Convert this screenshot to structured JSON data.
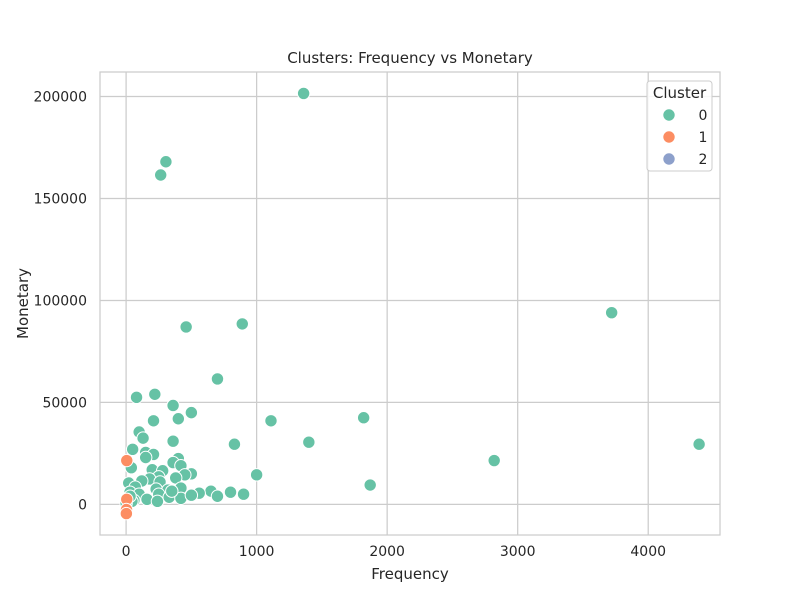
{
  "chart_data": {
    "type": "scatter",
    "title": "Clusters: Frequency vs Monetary",
    "xlabel": "Frequency",
    "ylabel": "Monetary",
    "xlim": [
      -200,
      4550
    ],
    "ylim": [
      -15000,
      212000
    ],
    "xticks": [
      0,
      1000,
      2000,
      3000,
      4000
    ],
    "yticks": [
      0,
      50000,
      100000,
      150000,
      200000
    ],
    "xtick_labels": [
      "0",
      "1000",
      "2000",
      "3000",
      "4000"
    ],
    "ytick_labels": [
      "0",
      "50000",
      "100000",
      "150000",
      "200000"
    ],
    "grid": true,
    "legend": {
      "title": "Cluster",
      "placement": "top-right",
      "entries": [
        {
          "label": "0",
          "color": "#66c2a5"
        },
        {
          "label": "1",
          "color": "#fc8d62"
        },
        {
          "label": "2",
          "color": "#8da0cb"
        }
      ]
    },
    "series": [
      {
        "name": "0",
        "color": "#66c2a5",
        "points": [
          [
            1360,
            201500
          ],
          [
            305,
            168000
          ],
          [
            265,
            161500
          ],
          [
            3720,
            94000
          ],
          [
            890,
            88500
          ],
          [
            460,
            87000
          ],
          [
            700,
            61500
          ],
          [
            220,
            54000
          ],
          [
            80,
            52500
          ],
          [
            360,
            48500
          ],
          [
            500,
            45000
          ],
          [
            1820,
            42500
          ],
          [
            400,
            42000
          ],
          [
            210,
            41000
          ],
          [
            1110,
            41000
          ],
          [
            100,
            35500
          ],
          [
            130,
            32500
          ],
          [
            360,
            31000
          ],
          [
            1400,
            30500
          ],
          [
            830,
            29500
          ],
          [
            4390,
            29500
          ],
          [
            50,
            27000
          ],
          [
            150,
            25500
          ],
          [
            210,
            24500
          ],
          [
            150,
            23000
          ],
          [
            400,
            22500
          ],
          [
            2820,
            21500
          ],
          [
            360,
            20500
          ],
          [
            420,
            19000
          ],
          [
            40,
            18000
          ],
          [
            200,
            17000
          ],
          [
            280,
            16500
          ],
          [
            500,
            15000
          ],
          [
            1000,
            14500
          ],
          [
            450,
            14500
          ],
          [
            250,
            13500
          ],
          [
            380,
            13000
          ],
          [
            180,
            12500
          ],
          [
            20,
            10500
          ],
          [
            120,
            11500
          ],
          [
            260,
            11000
          ],
          [
            1870,
            9500
          ],
          [
            70,
            8500
          ],
          [
            420,
            8000
          ],
          [
            230,
            7500
          ],
          [
            320,
            7000
          ],
          [
            650,
            6500
          ],
          [
            800,
            6000
          ],
          [
            560,
            5500
          ],
          [
            30,
            6000
          ],
          [
            100,
            5000
          ],
          [
            250,
            5000
          ],
          [
            900,
            5000
          ],
          [
            700,
            4000
          ],
          [
            330,
            3500
          ],
          [
            420,
            3000
          ],
          [
            10,
            3000
          ],
          [
            160,
            2500
          ],
          [
            60,
            2000
          ],
          [
            240,
            1500
          ],
          [
            45,
            1500
          ],
          [
            0,
            500
          ],
          [
            30,
            4000
          ],
          [
            500,
            4500
          ],
          [
            350,
            6500
          ]
        ]
      },
      {
        "name": "1",
        "color": "#fc8d62",
        "points": [
          [
            5,
            21500
          ],
          [
            5,
            2500
          ],
          [
            3,
            -2500
          ],
          [
            2,
            -4500
          ]
        ]
      },
      {
        "name": "2",
        "color": "#8da0cb",
        "points": []
      }
    ]
  }
}
